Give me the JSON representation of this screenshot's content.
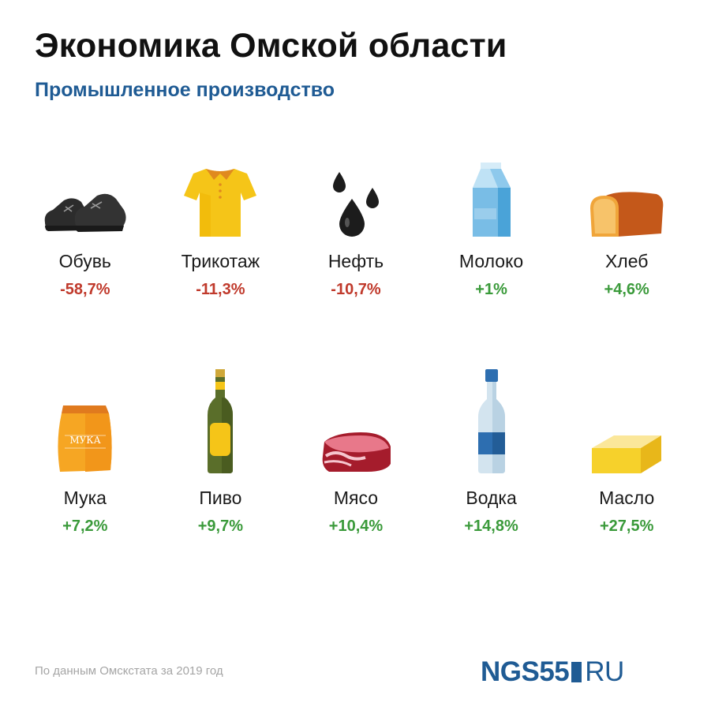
{
  "header": {
    "title": "Экономика Омской области",
    "subtitle": "Промышленное производство"
  },
  "items": [
    {
      "label": "Обувь",
      "value": "-58,7%",
      "trend": "negative",
      "icon": "shoes-icon"
    },
    {
      "label": "Трикотаж",
      "value": "-11,3%",
      "trend": "negative",
      "icon": "polo-shirt-icon"
    },
    {
      "label": "Нефть",
      "value": "-10,7%",
      "trend": "negative",
      "icon": "oil-drops-icon"
    },
    {
      "label": "Молоко",
      "value": "+1%",
      "trend": "positive",
      "icon": "milk-carton-icon"
    },
    {
      "label": "Хлеб",
      "value": "+4,6%",
      "trend": "positive",
      "icon": "bread-icon"
    },
    {
      "label": "Мука",
      "value": "+7,2%",
      "trend": "positive",
      "icon": "flour-bag-icon",
      "icon_text": "МУКА"
    },
    {
      "label": "Пиво",
      "value": "+9,7%",
      "trend": "positive",
      "icon": "beer-bottle-icon"
    },
    {
      "label": "Мясо",
      "value": "+10,4%",
      "trend": "positive",
      "icon": "meat-icon"
    },
    {
      "label": "Водка",
      "value": "+14,8%",
      "trend": "positive",
      "icon": "vodka-bottle-icon"
    },
    {
      "label": "Масло",
      "value": "+27,5%",
      "trend": "positive",
      "icon": "butter-icon"
    }
  ],
  "colors": {
    "title": "#111111",
    "subtitle": "#1f5b94",
    "negative": "#c0392b",
    "positive": "#3a9a3a",
    "source": "#a5a5a5"
  },
  "footer": {
    "source": "По данным Омскстата за 2019 год",
    "logo_main": "NGS55",
    "logo_suffix": "RU"
  }
}
